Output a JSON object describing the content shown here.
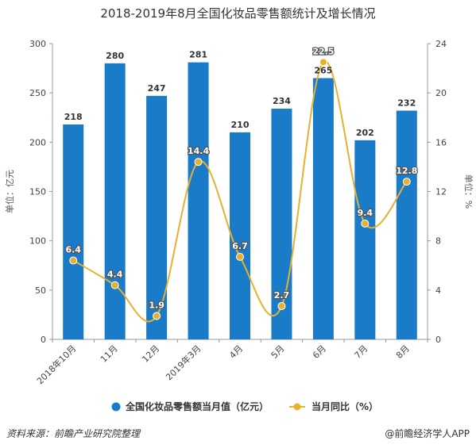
{
  "chart_data": {
    "type": "bar+line",
    "title": "2018-2019年8月全国化妆品零售额统计及增长情况",
    "categories": [
      "2018年10月",
      "11月",
      "12月",
      "2019年3月",
      "4月",
      "5月",
      "6月",
      "7月",
      "8月"
    ],
    "series": [
      {
        "name": "全国化妆品零售额当月值（亿元）",
        "type": "bar",
        "axis": "left",
        "color": "#1a7bc9",
        "values": [
          218,
          280,
          247,
          281,
          210,
          234,
          265,
          202,
          232
        ]
      },
      {
        "name": "当月同比（%）",
        "type": "line",
        "axis": "right",
        "color": "#e8b030",
        "values": [
          6.4,
          4.4,
          1.9,
          14.4,
          6.7,
          2.7,
          22.5,
          9.4,
          12.8
        ]
      }
    ],
    "ylabel_left": "单位：亿元",
    "ylabel_right": "单位：%",
    "ylim_left": [
      0,
      300
    ],
    "yticks_left": [
      "0",
      "50",
      "100",
      "150",
      "200",
      "250",
      "300"
    ],
    "ylim_right": [
      0,
      24
    ],
    "yticks_right": [
      "0",
      "4",
      "8",
      "12",
      "16",
      "20",
      "24"
    ],
    "grid": false,
    "legend_position": "bottom"
  },
  "footer": {
    "source": "资料来源：前瞻产业研究院整理",
    "brand": "@前瞻经济学人APP"
  }
}
